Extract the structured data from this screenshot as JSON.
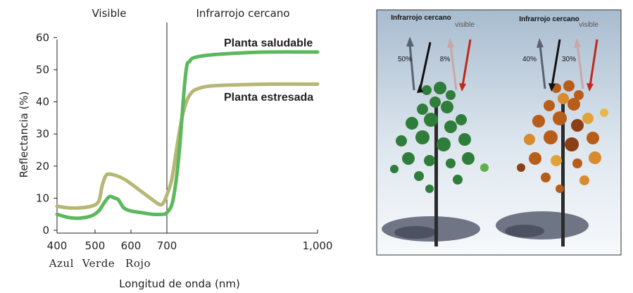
{
  "chart_data": {
    "type": "line",
    "title": "",
    "xlabel": "Longitud de onda (nm)",
    "ylabel": "Reflectancia (%)",
    "xlim": [
      400,
      1000
    ],
    "ylim": [
      0,
      60
    ],
    "x_ticks": [
      400,
      500,
      600,
      700,
      1000
    ],
    "x_tick_labels": [
      "400",
      "500",
      "600",
      "700",
      "1,000"
    ],
    "y_ticks": [
      0,
      10,
      20,
      30,
      40,
      50,
      60
    ],
    "y_tick_labels": [
      "0",
      "10",
      "20",
      "30",
      "40",
      "50",
      "60"
    ],
    "grid": false,
    "regions": [
      {
        "label": "Visible",
        "from": 400,
        "to": 700
      },
      {
        "label": "Infrarrojo cercano",
        "from": 700,
        "to": 1000
      }
    ],
    "divider_x": 700,
    "band_labels": [
      {
        "label": "Azul",
        "x": 445
      },
      {
        "label": "Verde",
        "x": 545
      },
      {
        "label": "Rojo",
        "x": 655
      }
    ],
    "series": [
      {
        "name": "Planta saludable",
        "color": "#5cb85c",
        "x": [
          400,
          430,
          460,
          490,
          510,
          525,
          540,
          555,
          565,
          580,
          600,
          630,
          660,
          690,
          700,
          710,
          718,
          725,
          730,
          735,
          740,
          745,
          750,
          760,
          780,
          820,
          900,
          1000
        ],
        "y": [
          5.0,
          4.0,
          3.8,
          4.5,
          6.0,
          8.5,
          10.5,
          10.0,
          9.5,
          7.0,
          6.0,
          5.5,
          5.0,
          5.0,
          5.5,
          8.0,
          15.0,
          25.0,
          35.0,
          45.0,
          51.5,
          52.5,
          53.5,
          54.0,
          54.5,
          55.0,
          55.5,
          55.5
        ]
      },
      {
        "name": "Planta estresada",
        "color": "#b6b774",
        "x": [
          400,
          430,
          460,
          490,
          510,
          520,
          530,
          540,
          560,
          580,
          600,
          630,
          660,
          680,
          690,
          700,
          710,
          720,
          730,
          740,
          750,
          760,
          780,
          820,
          900,
          1000
        ],
        "y": [
          7.5,
          7.0,
          7.0,
          7.5,
          9.0,
          14.0,
          17.0,
          17.5,
          17.0,
          16.0,
          14.5,
          12.0,
          9.5,
          8.0,
          8.5,
          11.0,
          16.0,
          26.0,
          35.0,
          40.5,
          43.0,
          44.0,
          44.8,
          45.2,
          45.5,
          45.5
        ]
      }
    ]
  },
  "illustration": {
    "left_tree": {
      "nir_label": "Infrarrojo cercano",
      "vis_label": "visible",
      "nir_percent": "50%",
      "vis_percent": "8%",
      "foliage_color": "#2f7d3a"
    },
    "right_tree": {
      "nir_label": "Infrarrojo cercano",
      "vis_label": "visible",
      "nir_percent": "40%",
      "vis_percent": "30%",
      "foliage_color": "#b85c1a"
    },
    "colors": {
      "sky_top": "#a8bccf",
      "sky_bottom": "#f4f7fa",
      "nir_arrow": "#111111",
      "nir_arrow_reflected": "#555c66",
      "vis_arrow": "#c0281c",
      "vis_arrow_reflected": "#c9a7a5"
    }
  }
}
